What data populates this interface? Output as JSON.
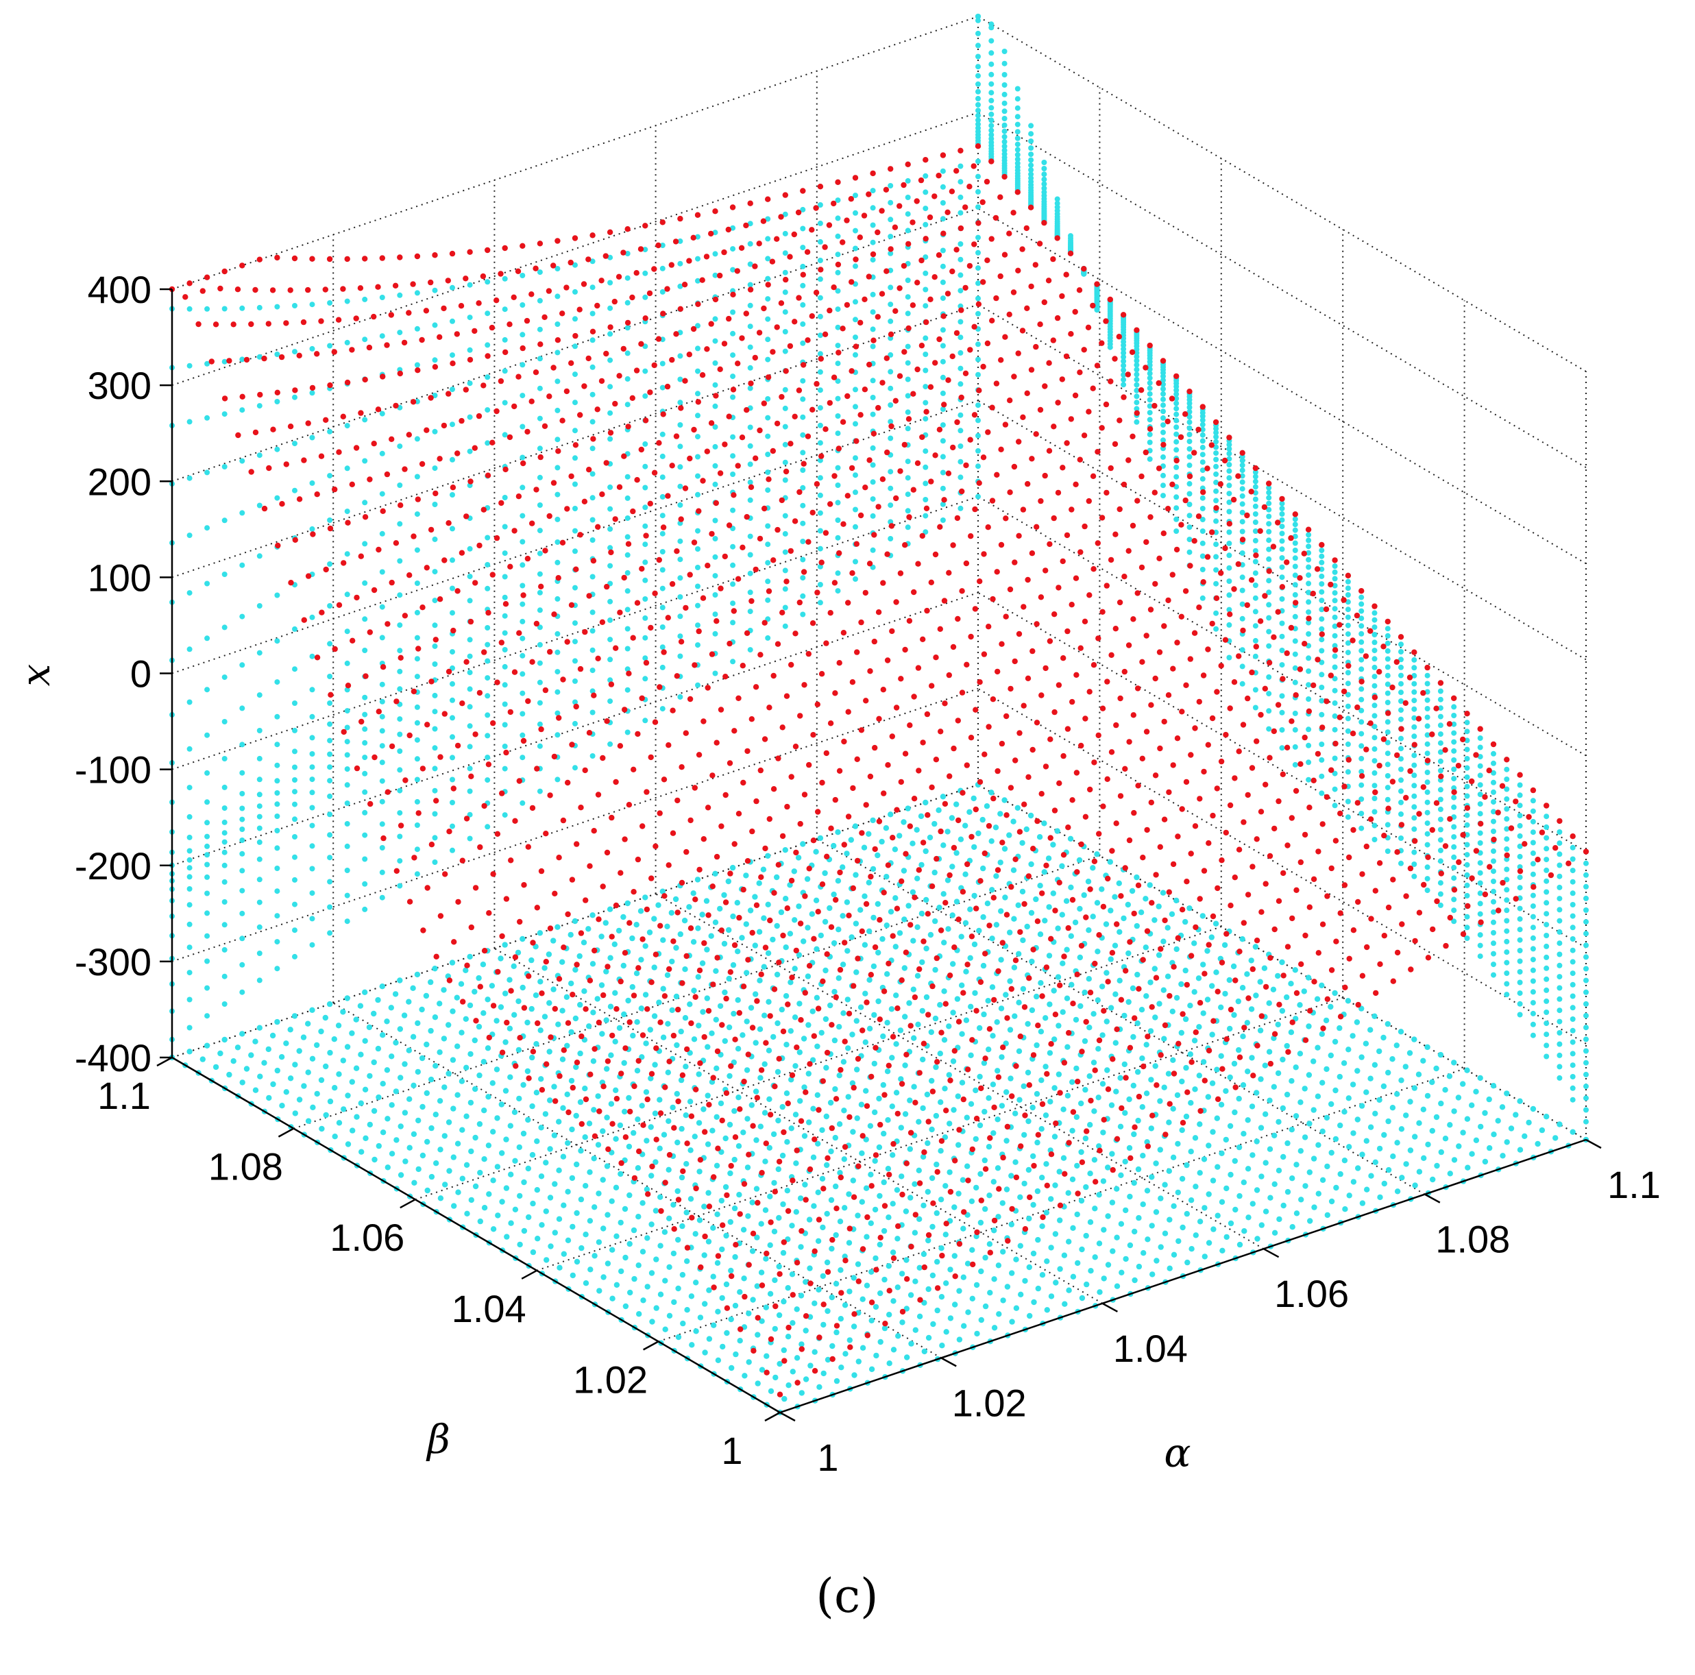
{
  "chart_data": {
    "type": "scatter3d",
    "caption": "(c)",
    "xlabel": "α",
    "ylabel": "β",
    "zlabel": "x",
    "xlim": [
      1,
      1.1
    ],
    "ylim": [
      1,
      1.1
    ],
    "zlim": [
      -400,
      400
    ],
    "x_ticks": [
      "1",
      "1.02",
      "1.04",
      "1.06",
      "1.08",
      "1.1"
    ],
    "y_ticks": [
      "1",
      "1.02",
      "1.04",
      "1.06",
      "1.08",
      "1.1"
    ],
    "z_ticks": [
      "-400",
      "-300",
      "-200",
      "-100",
      "0",
      "100",
      "200",
      "300",
      "400"
    ],
    "grid": true,
    "colors": {
      "cyan_series": "#33e0e8",
      "red_series": "#e8121a"
    },
    "series": [
      {
        "color": "cyan",
        "description_points": "floor projection at z=-400 plus wall projections",
        "corner_values": {
          "a1_b1": -400,
          "a1.1_b1": -400,
          "a1_b1.1": -400,
          "a1.1_b1.1": -400
        }
      },
      {
        "color": "red",
        "corner_values": {
          "a1_b1": -380,
          "a1.1_b1": -100,
          "a1_b1.1": 330,
          "a1.1_b1.1": 265
        },
        "notes": "surface rises steeply near beta=1.1, alpha=1 and falls to about -380 near alpha=1, beta=1"
      }
    ]
  }
}
